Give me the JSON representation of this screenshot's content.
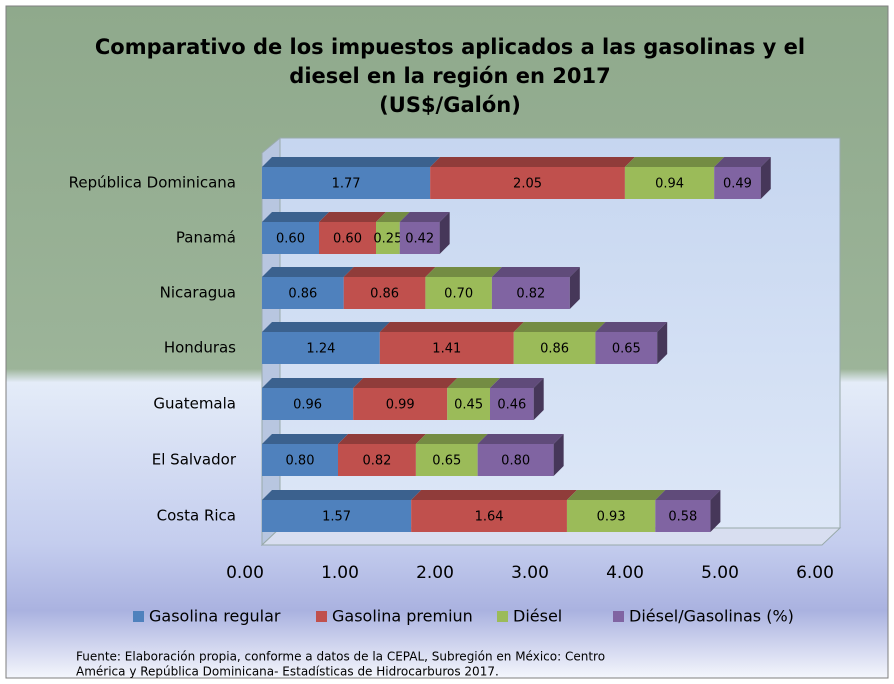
{
  "chart_data": {
    "type": "bar",
    "orientation": "horizontal",
    "stacked": true,
    "title": [
      "Comparativo de los impuestos aplicados a las gasolinas y el",
      "diesel en la región en 2017",
      "(US$/Galón)"
    ],
    "categories": [
      "República Dominicana",
      "Panamá",
      "Nicaragua",
      "Honduras",
      "Guatemala",
      "El Salvador",
      "Costa Rica"
    ],
    "series": [
      {
        "name": "Gasolina regular",
        "color": "#4f81bd",
        "values": [
          1.77,
          0.6,
          0.86,
          1.24,
          0.96,
          0.8,
          1.57
        ],
        "value_labels": [
          "1.77",
          "0.60",
          "0.86",
          "1.24",
          "0.96",
          "0.80",
          "1.57"
        ]
      },
      {
        "name": "Gasolina premiun",
        "color": "#c0504d",
        "values": [
          2.05,
          0.6,
          0.86,
          1.41,
          0.99,
          0.82,
          1.64
        ],
        "value_labels": [
          "2.05",
          "0.60",
          "0.86",
          "1.41",
          "0.99",
          "0.82",
          "1.64"
        ]
      },
      {
        "name": "Diésel",
        "color": "#9bbb59",
        "values": [
          0.94,
          0.25,
          0.7,
          0.86,
          0.45,
          0.65,
          0.93
        ],
        "value_labels": [
          "0.94",
          "0.25",
          "0.70",
          "0.86",
          "0.45",
          "0.65",
          "0.93"
        ]
      },
      {
        "name": "Diésel/Gasolinas (%)",
        "color": "#8064a2",
        "values": [
          0.49,
          0.42,
          0.82,
          0.65,
          0.46,
          0.8,
          0.58
        ],
        "value_labels": [
          "0.49",
          "0.42",
          "0.82",
          "0.65",
          "0.46",
          "0.80",
          "0.58"
        ]
      }
    ],
    "xlim": [
      0,
      6
    ],
    "xticks": [
      {
        "value": 0,
        "label": "0.00"
      },
      {
        "value": 1,
        "label": "1.00"
      },
      {
        "value": 2,
        "label": "2.00"
      },
      {
        "value": 3,
        "label": "3.00"
      },
      {
        "value": 4,
        "label": "4.00"
      },
      {
        "value": 5,
        "label": "5.00"
      },
      {
        "value": 6,
        "label": "6.00"
      }
    ],
    "legend": "bottom",
    "source": [
      "Fuente: Elaboración propia, conforme a datos de la CEPAL, Subregión en México: Centro",
      "América y República Dominicana- Estadísticas de Hidrocarburos 2017."
    ]
  }
}
